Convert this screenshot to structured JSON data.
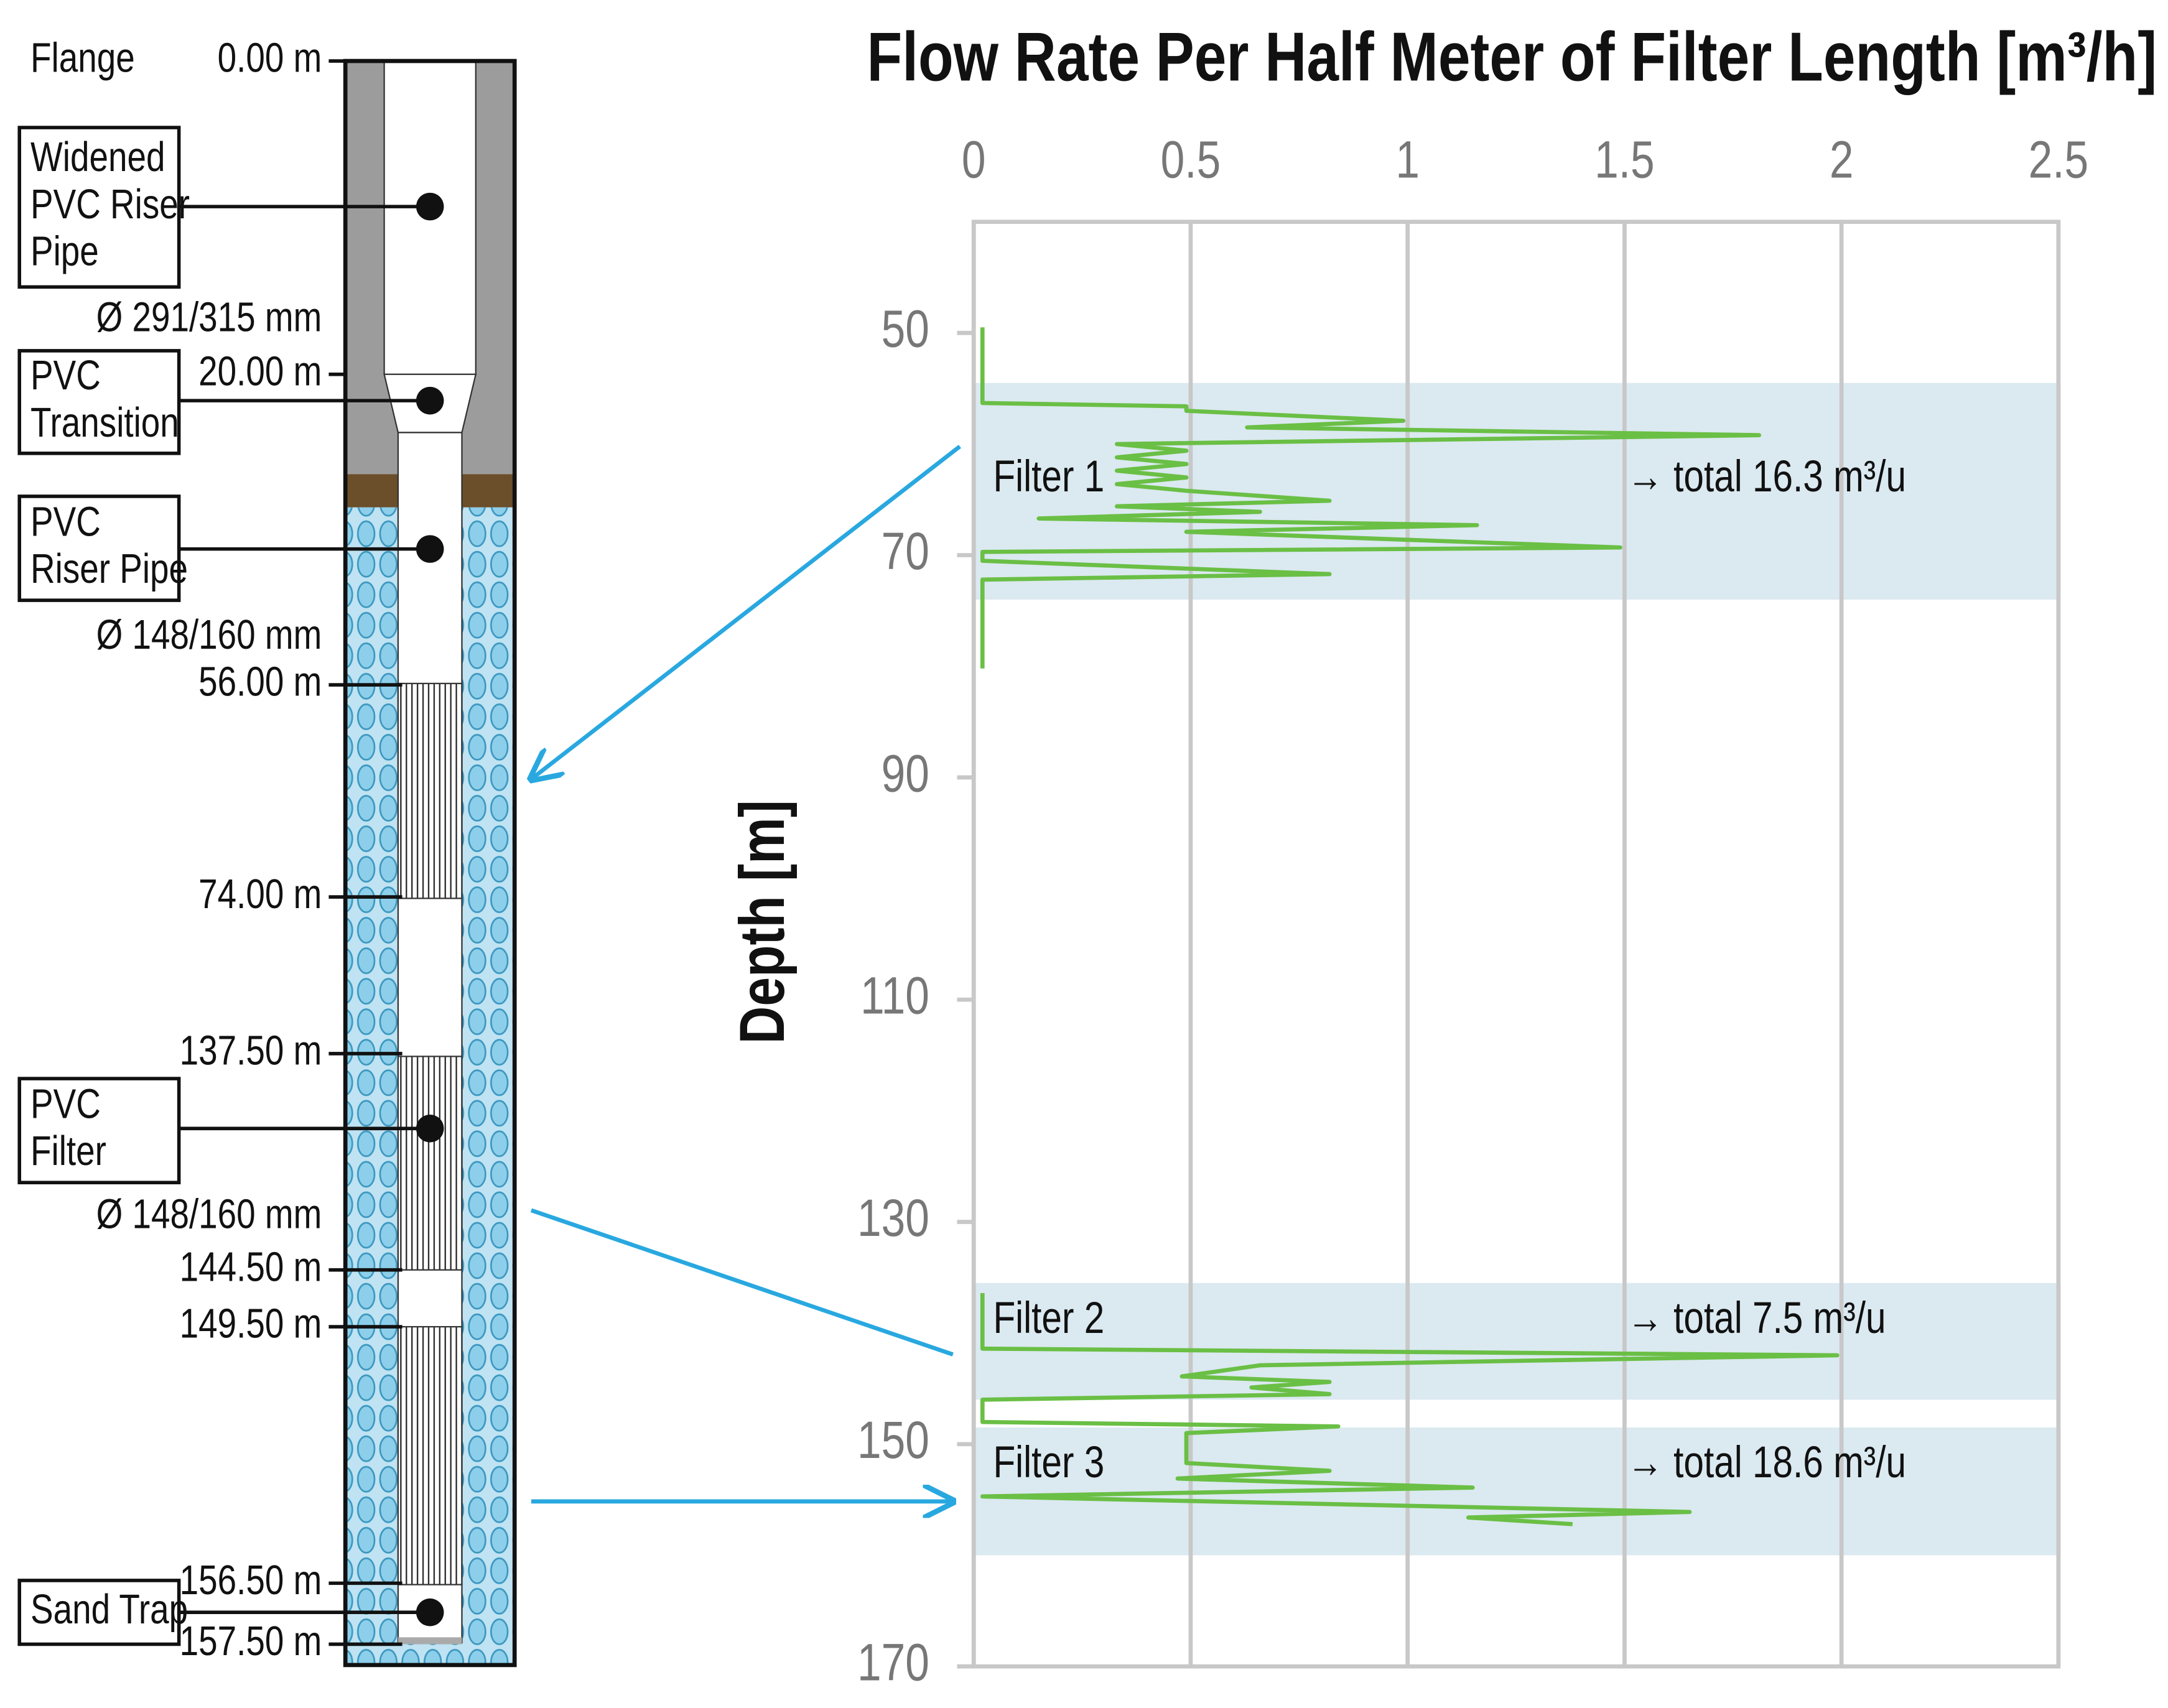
{
  "chart_data": {
    "type": "line",
    "title": "Flow Rate Per Half Meter of Filter Length [m³/h]",
    "ylabel": "Depth [m]",
    "xlim": [
      0,
      2.5
    ],
    "xticks": [
      0,
      0.5,
      1,
      1.5,
      2,
      2.5
    ],
    "ylim": [
      40,
      170
    ],
    "yticks": [
      50,
      70,
      90,
      110,
      130,
      150,
      170
    ],
    "inverted_y": true,
    "grid": true,
    "bands": [
      {
        "from": 54.5,
        "to": 74
      },
      {
        "from": 135.5,
        "to": 146
      },
      {
        "from": 148.5,
        "to": 160
      }
    ],
    "band_color": "#dbe9f0",
    "annotations": [
      {
        "label": "Filter 1",
        "total": "→ total 16.3 m³/u"
      },
      {
        "label": "Filter 2",
        "total": "→ total 7.5 m³/u"
      },
      {
        "label": "Filter 3",
        "total": "→ total 18.6 m³/u"
      }
    ],
    "depth": [
      49.5,
      56.3,
      56.6,
      57.0,
      57.9,
      58.5,
      59.2,
      60.0,
      60.6,
      61.2,
      61.8,
      62.4,
      63.0,
      63.6,
      64.2,
      65.1,
      65.6,
      66.1,
      66.7,
      67.3,
      67.9,
      69.3,
      69.7,
      70.5,
      71.7,
      72.2,
      80.2,
      null,
      136.4,
      141.4,
      142.0,
      142.9,
      143.9,
      144.4,
      144.9,
      145.5,
      146.0,
      148.0,
      148.4,
      149.0,
      151.7,
      152.4,
      153.1,
      153.9,
      154.7,
      156.1,
      156.6,
      157.2
    ],
    "series": [
      {
        "color": "#6abf45",
        "values": [
          0.02,
          0.02,
          0.49,
          0.49,
          0.99,
          0.63,
          1.81,
          0.33,
          0.49,
          0.33,
          0.49,
          0.33,
          0.49,
          0.33,
          0.49,
          0.82,
          0.33,
          0.66,
          0.15,
          1.16,
          0.49,
          1.49,
          0.02,
          0.02,
          0.82,
          0.02,
          0.02,
          null,
          0.02,
          0.02,
          1.99,
          0.66,
          0.48,
          0.82,
          0.64,
          0.82,
          0.02,
          0.02,
          0.84,
          0.49,
          0.49,
          0.82,
          0.47,
          1.15,
          0.02,
          1.65,
          1.14,
          1.38
        ]
      }
    ]
  },
  "well": {
    "flange": "Flange",
    "depths": [
      "0.00 m",
      "20.00 m",
      "56.00 m",
      "74.00 m",
      "137.50 m",
      "144.50 m",
      "149.50 m",
      "156.50 m",
      "157.50 m"
    ],
    "diameters": [
      "Ø 291/315 mm",
      "Ø 148/160 mm",
      "Ø 148/160 mm"
    ],
    "components": [
      [
        "Widened",
        "PVC Riser",
        "Pipe"
      ],
      [
        "PVC",
        "Transition"
      ],
      [
        "PVC",
        "Riser Pipe"
      ],
      [
        "PVC",
        "Filter"
      ],
      [
        "Sand Trap"
      ]
    ]
  }
}
